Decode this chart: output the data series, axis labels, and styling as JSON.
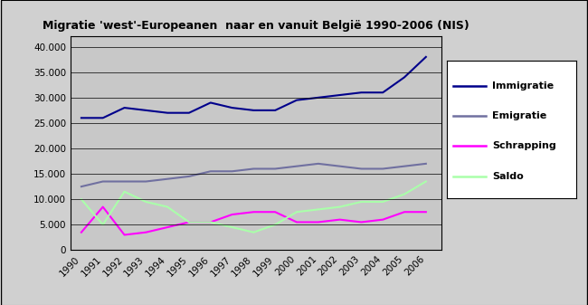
{
  "title": "Migratie 'west'-Europeanen  naar en vanuit België 1990-2006 (NIS)",
  "years": [
    1990,
    1991,
    1992,
    1993,
    1994,
    1995,
    1996,
    1997,
    1998,
    1999,
    2000,
    2001,
    2002,
    2003,
    2004,
    2005,
    2006
  ],
  "immigratie": [
    26000,
    26000,
    28000,
    27500,
    27000,
    27000,
    29000,
    28000,
    27500,
    27500,
    29500,
    30000,
    30500,
    31000,
    31000,
    34000,
    38000
  ],
  "emigratie": [
    12500,
    13500,
    13500,
    13500,
    14000,
    14500,
    15500,
    15500,
    16000,
    16000,
    16500,
    17000,
    16500,
    16000,
    16000,
    16500,
    17000
  ],
  "schrapping": [
    3500,
    8500,
    3000,
    3500,
    4500,
    5500,
    5500,
    7000,
    7500,
    7500,
    5500,
    5500,
    6000,
    5500,
    6000,
    7500,
    7500
  ],
  "saldo": [
    10000,
    5000,
    11500,
    9500,
    8500,
    5500,
    5500,
    4500,
    3500,
    5000,
    7500,
    8000,
    8500,
    9500,
    9500,
    11000,
    13500
  ],
  "line_colors": {
    "immigratie": "#00008B",
    "emigratie": "#7070A0",
    "schrapping": "#FF00FF",
    "saldo": "#AAFFAA"
  },
  "ylim": [
    0,
    42000
  ],
  "yticks": [
    0,
    5000,
    10000,
    15000,
    20000,
    25000,
    30000,
    35000,
    40000
  ],
  "plot_bg_color": "#C8C8C8",
  "outer_bg_color": "#D0D0D0",
  "legend_labels": [
    "Immigratie",
    "Emigratie",
    "Schrapping",
    "Saldo"
  ]
}
